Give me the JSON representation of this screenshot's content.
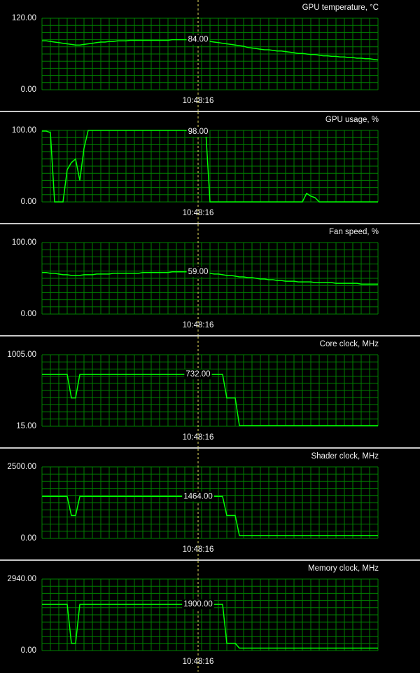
{
  "chart_data": [
    {
      "type": "line",
      "title": "GPU temperature, °C",
      "color": "#00ff00",
      "ylim": [
        0,
        120
      ],
      "yticks": [
        {
          "value": 0,
          "label": "0.00"
        },
        {
          "value": 120,
          "label": "120.00"
        }
      ],
      "values": [
        82,
        82,
        81,
        80,
        79,
        78,
        77,
        76,
        75,
        75,
        76,
        77,
        78,
        79,
        80,
        80,
        81,
        81,
        82,
        82,
        82,
        83,
        83,
        83,
        83,
        83,
        83,
        83,
        83,
        83,
        83,
        84,
        84,
        84,
        84,
        84,
        84,
        84,
        84,
        82,
        81,
        80,
        79,
        78,
        77,
        76,
        75,
        74,
        73,
        71,
        70,
        69,
        68,
        67,
        67,
        66,
        65,
        65,
        64,
        63,
        62,
        61,
        61,
        60,
        59,
        59,
        58,
        57,
        57,
        56,
        56,
        55,
        55,
        54,
        54,
        53,
        53,
        52,
        52,
        51,
        50
      ],
      "cursor": {
        "value": 84,
        "label": "84.00",
        "time": "10:48:16"
      }
    },
    {
      "type": "line",
      "title": "GPU usage, %",
      "color": "#00ff00",
      "ylim": [
        0,
        100
      ],
      "yticks": [
        {
          "value": 0,
          "label": "0.00"
        },
        {
          "value": 100,
          "label": "100.00"
        }
      ],
      "values": [
        99,
        99,
        97,
        0,
        0,
        0,
        45,
        55,
        60,
        30,
        75,
        100,
        100,
        100,
        100,
        100,
        100,
        100,
        100,
        100,
        100,
        100,
        100,
        100,
        100,
        100,
        100,
        100,
        100,
        100,
        100,
        100,
        100,
        100,
        100,
        99,
        99,
        98,
        98,
        98,
        0,
        0,
        0,
        0,
        0,
        0,
        0,
        0,
        0,
        0,
        0,
        0,
        0,
        0,
        0,
        0,
        0,
        0,
        0,
        0,
        0,
        0,
        0,
        12,
        8,
        6,
        0,
        0,
        0,
        0,
        0,
        0,
        0,
        0,
        0,
        0,
        0,
        0,
        0,
        0,
        0
      ],
      "cursor": {
        "value": 98,
        "label": "98.00",
        "time": "10:48:16"
      }
    },
    {
      "type": "line",
      "title": "Fan speed, %",
      "color": "#00ff00",
      "ylim": [
        0,
        100
      ],
      "yticks": [
        {
          "value": 0,
          "label": "0.00"
        },
        {
          "value": 100,
          "label": "100.00"
        }
      ],
      "values": [
        58,
        58,
        57,
        57,
        56,
        55,
        55,
        54,
        54,
        54,
        55,
        55,
        55,
        56,
        56,
        56,
        56,
        57,
        57,
        57,
        57,
        57,
        57,
        57,
        58,
        58,
        58,
        58,
        58,
        58,
        58,
        59,
        59,
        59,
        59,
        59,
        59,
        59,
        59,
        58,
        57,
        56,
        56,
        55,
        54,
        54,
        53,
        52,
        52,
        51,
        51,
        50,
        49,
        49,
        48,
        48,
        47,
        47,
        46,
        46,
        46,
        45,
        45,
        45,
        45,
        44,
        44,
        44,
        44,
        44,
        43,
        43,
        43,
        43,
        43,
        43,
        42,
        42,
        42,
        42,
        42
      ],
      "cursor": {
        "value": 59,
        "label": "59.00",
        "time": "10:48:16"
      }
    },
    {
      "type": "line",
      "title": "Core clock, MHz",
      "color": "#00ff00",
      "ylim": [
        15,
        1005
      ],
      "yticks": [
        {
          "value": 15,
          "label": "15.00"
        },
        {
          "value": 1005,
          "label": "1005.00"
        }
      ],
      "values": [
        732,
        732,
        732,
        732,
        732,
        732,
        732,
        407,
        407,
        732,
        732,
        732,
        732,
        732,
        732,
        732,
        732,
        732,
        732,
        732,
        732,
        732,
        732,
        732,
        732,
        732,
        732,
        732,
        732,
        732,
        732,
        732,
        732,
        732,
        732,
        732,
        732,
        732,
        732,
        732,
        732,
        732,
        732,
        732,
        407,
        407,
        407,
        25,
        25,
        25,
        25,
        25,
        25,
        25,
        25,
        25,
        25,
        25,
        25,
        25,
        25,
        25,
        25,
        25,
        25,
        25,
        25,
        25,
        25,
        25,
        25,
        25,
        25,
        25,
        25,
        25,
        25,
        25,
        25,
        25,
        25
      ],
      "cursor": {
        "value": 732,
        "label": "732.00",
        "time": "10:48:16"
      }
    },
    {
      "type": "line",
      "title": "Shader clock, MHz",
      "color": "#00ff00",
      "ylim": [
        0,
        2500
      ],
      "yticks": [
        {
          "value": 0,
          "label": "0.00"
        },
        {
          "value": 2500,
          "label": "2500.00"
        }
      ],
      "values": [
        1464,
        1464,
        1464,
        1464,
        1464,
        1464,
        1464,
        800,
        800,
        1464,
        1464,
        1464,
        1464,
        1464,
        1464,
        1464,
        1464,
        1464,
        1464,
        1464,
        1464,
        1464,
        1464,
        1464,
        1464,
        1464,
        1464,
        1464,
        1464,
        1464,
        1464,
        1464,
        1464,
        1464,
        1464,
        1464,
        1464,
        1464,
        1464,
        1464,
        1464,
        1464,
        1464,
        1464,
        800,
        800,
        800,
        100,
        100,
        100,
        100,
        100,
        100,
        100,
        100,
        100,
        100,
        100,
        100,
        100,
        100,
        100,
        100,
        100,
        100,
        100,
        100,
        100,
        100,
        100,
        100,
        100,
        100,
        100,
        100,
        100,
        100,
        100,
        100,
        100,
        100
      ],
      "cursor": {
        "value": 1464,
        "label": "1464.00",
        "time": "10:48:16"
      }
    },
    {
      "type": "line",
      "title": "Memory clock, MHz",
      "color": "#00ff00",
      "ylim": [
        0,
        2940
      ],
      "yticks": [
        {
          "value": 0,
          "label": "0.00"
        },
        {
          "value": 2940,
          "label": "2940.00"
        }
      ],
      "values": [
        1900,
        1900,
        1900,
        1900,
        1900,
        1900,
        1900,
        300,
        300,
        1900,
        1900,
        1900,
        1900,
        1900,
        1900,
        1900,
        1900,
        1900,
        1900,
        1900,
        1900,
        1900,
        1900,
        1900,
        1900,
        1900,
        1900,
        1900,
        1900,
        1900,
        1900,
        1900,
        1900,
        1900,
        1900,
        1900,
        1900,
        1900,
        1900,
        1900,
        1900,
        1900,
        1900,
        1900,
        300,
        300,
        300,
        100,
        100,
        100,
        100,
        100,
        100,
        100,
        100,
        100,
        100,
        100,
        100,
        100,
        100,
        100,
        100,
        100,
        100,
        100,
        100,
        100,
        100,
        100,
        100,
        100,
        100,
        100,
        100,
        100,
        100,
        100,
        100,
        100,
        100
      ],
      "cursor": {
        "value": 1900,
        "label": "1900.00",
        "time": "10:48:16"
      }
    }
  ]
}
